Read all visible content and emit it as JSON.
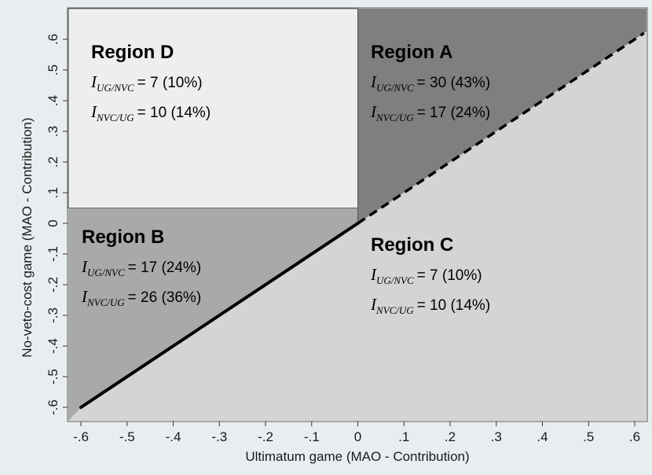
{
  "chart_data": {
    "type": "area",
    "xlabel": "Ultimatum game (MAO - Contribution)",
    "ylabel": "No-veto-cost game (MAO - Contribution)",
    "xlim": [
      -0.62,
      0.62
    ],
    "ylim": [
      -0.62,
      0.62
    ],
    "x_ticks": [
      "-.6",
      "-.5",
      "-.4",
      "-.3",
      "-.2",
      "-.1",
      "0",
      ".1",
      ".2",
      ".3",
      ".4",
      ".5",
      ".6"
    ],
    "y_ticks": [
      "-.6",
      "-.5",
      "-.4",
      "-.3",
      "-.2",
      "-.1",
      "0",
      ".1",
      ".2",
      ".3",
      ".4",
      ".5",
      ".6"
    ],
    "grid": false,
    "legend": "none",
    "region_boundary": {
      "x": 0,
      "y": 0.05
    },
    "diagonal": {
      "solid_from": [
        -0.6,
        -0.6
      ],
      "solid_to": [
        0,
        0
      ],
      "dashed_to": [
        0.62,
        0.62
      ]
    },
    "regions": [
      {
        "id": "D",
        "title": "Region D",
        "color": "#eeeeee",
        "stats": [
          {
            "var": "I",
            "sub": "UG/NVC",
            "value": "= 7 (10%)"
          },
          {
            "var": "I",
            "sub": "NVC/UG",
            "value": "= 10 (14%)"
          }
        ]
      },
      {
        "id": "A",
        "title": "Region A",
        "color": "#7f7f7f",
        "stats": [
          {
            "var": "I",
            "sub": "UG/NVC",
            "value": "= 30 (43%)"
          },
          {
            "var": "I",
            "sub": "NVC/UG",
            "value": "= 17 (24%)"
          }
        ]
      },
      {
        "id": "B",
        "title": "Region B",
        "color": "#a9a9a9",
        "stats": [
          {
            "var": "I",
            "sub": "UG/NVC",
            "value": "= 17 (24%)"
          },
          {
            "var": "I",
            "sub": "NVC/UG",
            "value": "= 26 (36%)"
          }
        ]
      },
      {
        "id": "C",
        "title": "Region C",
        "color": "#d4d4d4",
        "stats": [
          {
            "var": "I",
            "sub": "UG/NVC",
            "value": "= 7 (10%)"
          },
          {
            "var": "I",
            "sub": "NVC/UG",
            "value": "= 10 (14%)"
          }
        ]
      }
    ]
  }
}
